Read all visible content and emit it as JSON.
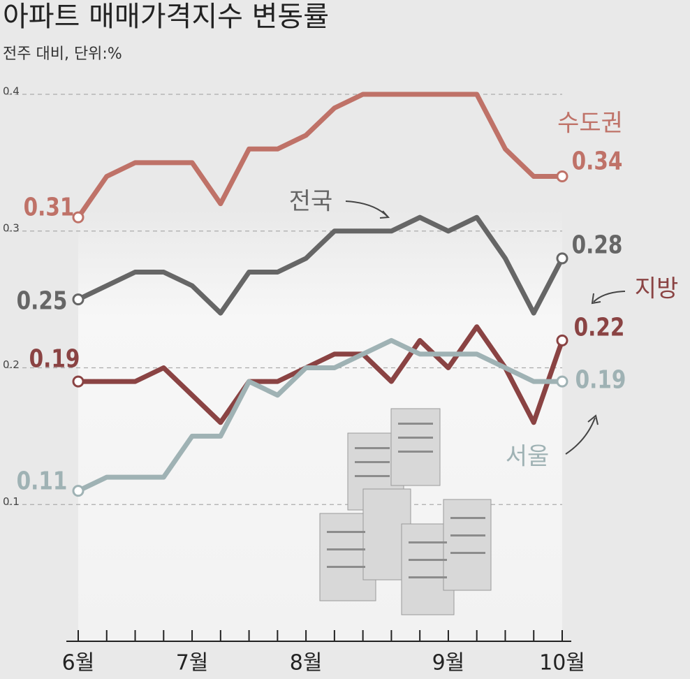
{
  "chart_data": {
    "type": "line",
    "title": "아파트 매매가격지수 변동률",
    "subtitle": "전주 대비, 단위:%",
    "categories": [
      "6월",
      null,
      null,
      null,
      "7월",
      null,
      null,
      null,
      "8월",
      null,
      null,
      null,
      null,
      "9월",
      null,
      null,
      null,
      "10월"
    ],
    "series": [
      {
        "name": "수도권",
        "color": "#bf7268",
        "values": [
          0.31,
          0.34,
          0.35,
          0.35,
          0.35,
          0.32,
          0.36,
          0.36,
          0.37,
          0.39,
          0.4,
          0.4,
          0.4,
          0.4,
          0.4,
          0.36,
          0.34,
          0.34
        ]
      },
      {
        "name": "전국",
        "color": "#666666",
        "values": [
          0.25,
          0.26,
          0.27,
          0.27,
          0.26,
          0.24,
          0.27,
          0.27,
          0.28,
          0.3,
          0.3,
          0.3,
          0.31,
          0.3,
          0.31,
          0.28,
          0.24,
          0.28
        ]
      },
      {
        "name": "지방",
        "color": "#8a4343",
        "values": [
          0.19,
          0.19,
          0.19,
          0.2,
          0.18,
          0.16,
          0.19,
          0.19,
          0.2,
          0.21,
          0.21,
          0.19,
          0.22,
          0.2,
          0.23,
          0.2,
          0.16,
          0.22
        ]
      },
      {
        "name": "서울",
        "color": "#9fb2b4",
        "values": [
          0.11,
          0.12,
          0.12,
          0.12,
          0.15,
          0.15,
          0.19,
          0.18,
          0.2,
          0.2,
          0.21,
          0.22,
          0.21,
          0.21,
          0.21,
          0.2,
          0.19,
          0.19
        ]
      }
    ],
    "ylim": [
      0,
      0.4
    ],
    "yticks": [
      0.1,
      0.2,
      0.3,
      0.4
    ],
    "grid": true
  }
}
